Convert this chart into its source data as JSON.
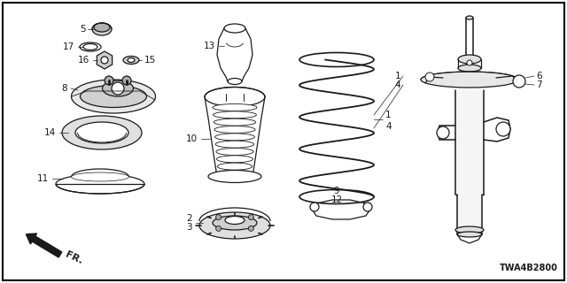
{
  "bg_color": "#ffffff",
  "border_color": "#000000",
  "part_color": "#1a1a1a",
  "diagram_id": "TWA4B2800",
  "fig_w": 6.4,
  "fig_h": 3.2,
  "dpi": 100
}
